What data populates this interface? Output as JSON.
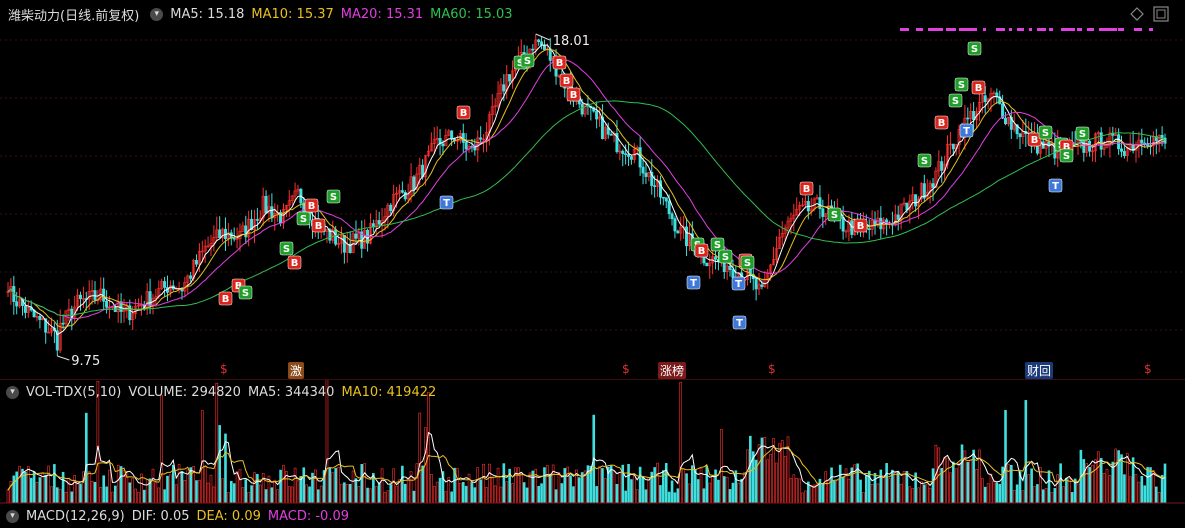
{
  "header": {
    "stock": "潍柴动力(日线.前复权)",
    "ma5": "MA5: 15.18",
    "ma10": "MA10: 15.37",
    "ma20": "MA20: 15.31",
    "ma60": "MA60: 15.03"
  },
  "volume_panel": {
    "title": "VOL-TDX(5,10)",
    "volume": "VOLUME: 294820",
    "ma5": "MA5: 344340",
    "ma10": "MA10: 419422"
  },
  "macd_panel": {
    "title": "MACD(12,26,9)",
    "dif": "DIF: 0.05",
    "dea": "DEA: 0.09",
    "macd": "MACD: -0.09"
  },
  "events": {
    "ji": "激",
    "zhangbang": "涨榜",
    "caihui": "财回",
    "s_mark": "$"
  },
  "marker_labels": {
    "buy": "B",
    "sell": "S",
    "t": "T"
  },
  "colors": {
    "up": "#ff3030",
    "down": "#40e0e0",
    "ma5": "#ffffff",
    "ma10": "#e8c020",
    "ma20": "#e040e0",
    "ma60": "#30c050",
    "buy": "#d9251c",
    "sell": "#1f9e2a",
    "t": "#3f78d9"
  },
  "chart_data": {
    "type": "candlestick",
    "y_max_label": "18.01",
    "y_min_label": "9.75",
    "high": 18.01,
    "low": 9.75,
    "price_path": [
      [
        0,
        11.4
      ],
      [
        8,
        10.8
      ],
      [
        16,
        10.3
      ],
      [
        24,
        11.1
      ],
      [
        32,
        11.3
      ],
      [
        40,
        10.8
      ],
      [
        48,
        11.2
      ],
      [
        56,
        11.6
      ],
      [
        60,
        11.5
      ],
      [
        68,
        12.5
      ],
      [
        74,
        12.9
      ],
      [
        80,
        12.8
      ],
      [
        88,
        13.6
      ],
      [
        95,
        13.3
      ],
      [
        100,
        13.9
      ],
      [
        108,
        13.0
      ],
      [
        116,
        12.6
      ],
      [
        124,
        12.8
      ],
      [
        132,
        13.7
      ],
      [
        140,
        14.2
      ],
      [
        148,
        15.2
      ],
      [
        154,
        15.4
      ],
      [
        160,
        15.0
      ],
      [
        166,
        15.7
      ],
      [
        172,
        16.9
      ],
      [
        178,
        17.4
      ],
      [
        182,
        17.9
      ],
      [
        188,
        17.3
      ],
      [
        194,
        16.5
      ],
      [
        200,
        16.0
      ],
      [
        208,
        15.3
      ],
      [
        216,
        15.0
      ],
      [
        224,
        14.0
      ],
      [
        232,
        12.9
      ],
      [
        240,
        12.3
      ],
      [
        248,
        12.1
      ],
      [
        255,
        11.8
      ],
      [
        260,
        11.3
      ],
      [
        266,
        12.8
      ],
      [
        272,
        13.4
      ],
      [
        280,
        13.6
      ],
      [
        288,
        13.1
      ],
      [
        296,
        13.0
      ],
      [
        304,
        13.2
      ],
      [
        312,
        13.7
      ],
      [
        320,
        14.4
      ],
      [
        328,
        15.5
      ],
      [
        334,
        16.1
      ],
      [
        340,
        16.4
      ],
      [
        346,
        15.7
      ],
      [
        354,
        15.2
      ],
      [
        362,
        15.0
      ],
      [
        370,
        15.1
      ],
      [
        378,
        15.3
      ],
      [
        386,
        15.1
      ],
      [
        392,
        15.4
      ],
      [
        399,
        15.2
      ]
    ],
    "volume_overlays": [
      "MA5",
      "MA10"
    ]
  }
}
